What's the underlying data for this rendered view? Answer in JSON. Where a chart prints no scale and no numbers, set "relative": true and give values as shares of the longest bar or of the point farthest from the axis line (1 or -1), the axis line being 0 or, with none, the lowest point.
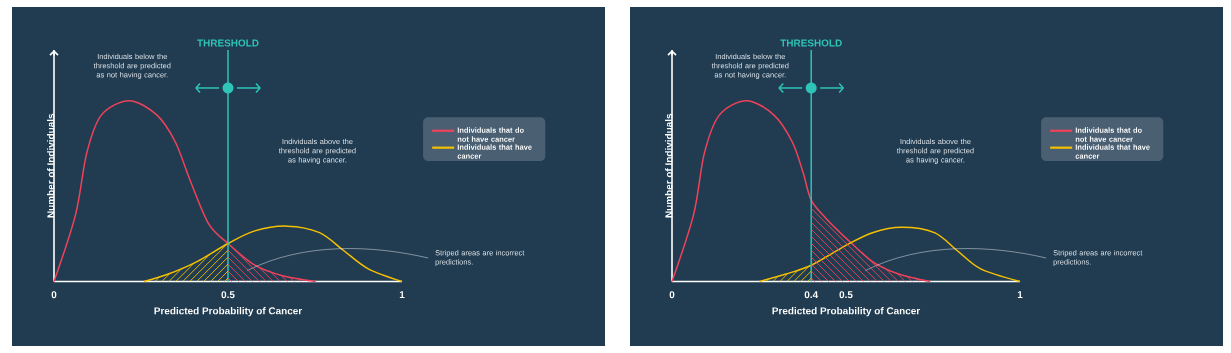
{
  "chart_data": [
    {
      "type": "line",
      "relative": true,
      "xlabel": "Predicted Probability of Cancer",
      "ylabel": "Number of Individuals",
      "xlim": [
        0,
        1
      ],
      "xticks": [
        0,
        0.5,
        1
      ],
      "legend": "right",
      "series": [
        {
          "name": "Individuals that do not have cancer",
          "color": "#f0425a",
          "x": [
            0,
            0.062,
            0.094,
            0.136,
            0.216,
            0.296,
            0.349,
            0.391,
            0.444,
            0.5,
            0.577,
            0.659,
            0.752
          ],
          "values": [
            0,
            0.37,
            0.71,
            0.92,
            1.0,
            0.92,
            0.77,
            0.56,
            0.32,
            0.21,
            0.09,
            0.03,
            0
          ]
        },
        {
          "name": "Individuals that have cancer",
          "color": "#f5c000",
          "x": [
            0.258,
            0.327,
            0.411,
            0.5,
            0.577,
            0.67,
            0.763,
            0.833,
            0.903,
            1.0
          ],
          "values": [
            0,
            0.04,
            0.11,
            0.21,
            0.28,
            0.306,
            0.27,
            0.17,
            0.07,
            0
          ]
        }
      ],
      "ref_lines": [
        {
          "axis": "x",
          "value": 0.5,
          "label": "THRESHOLD",
          "color": "#2ec4b6"
        }
      ],
      "annotations": [
        "Individuals below the threshold are predicted as not having cancer.",
        "Individuals above the threshold are predicted as having cancer.",
        "Striped areas are incorrect predictions."
      ]
    },
    {
      "type": "line",
      "relative": true,
      "xlabel": "Predicted Probability of Cancer",
      "ylabel": "Number of Individuals",
      "xlim": [
        0,
        1
      ],
      "xticks": [
        0,
        0.4,
        0.5,
        1
      ],
      "legend": "right",
      "series": [
        {
          "name": "Individuals that do not have cancer",
          "color": "#f0425a",
          "x": [
            0,
            0.062,
            0.093,
            0.136,
            0.214,
            0.293,
            0.346,
            0.377,
            0.4,
            0.442,
            0.5,
            0.576,
            0.653,
            0.742
          ],
          "values": [
            0,
            0.37,
            0.71,
            0.92,
            1.0,
            0.92,
            0.77,
            0.6,
            0.45,
            0.35,
            0.24,
            0.11,
            0.04,
            0
          ]
        },
        {
          "name": "Individuals that have cancer",
          "color": "#f5c000",
          "x": [
            0.251,
            0.325,
            0.4,
            0.5,
            0.576,
            0.66,
            0.754,
            0.82,
            0.887,
            1.0
          ],
          "values": [
            0,
            0.04,
            0.09,
            0.2,
            0.27,
            0.3,
            0.27,
            0.17,
            0.07,
            0
          ]
        }
      ],
      "ref_lines": [
        {
          "axis": "x",
          "value": 0.4,
          "label": "THRESHOLD",
          "color": "#2ec4b6"
        }
      ],
      "annotations": [
        "Individuals below the threshold are predicted as not having cancer.",
        "Individuals above the threshold are predicted as having cancer.",
        "Striped areas are incorrect predictions."
      ]
    }
  ]
}
